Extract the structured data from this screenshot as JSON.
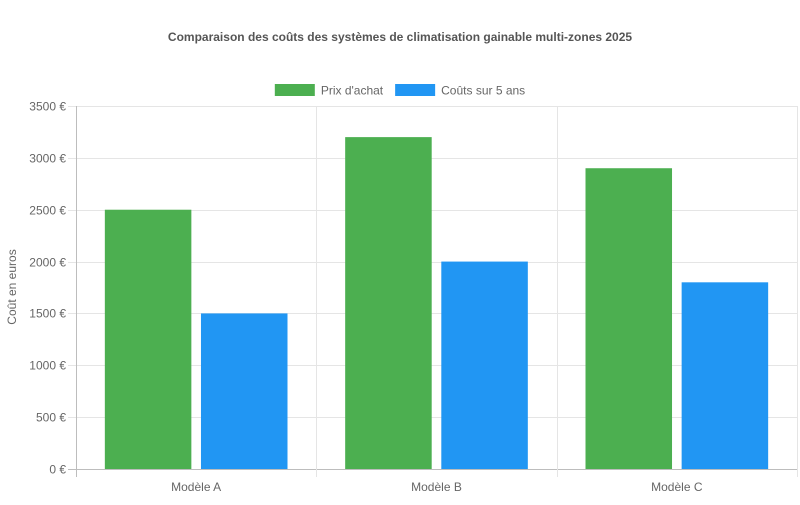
{
  "chart_data": {
    "type": "bar",
    "title": "Comparaison des coûts des systèmes de climatisation gainable multi-zones 2025",
    "xlabel": "",
    "ylabel": "Coût en euros",
    "categories": [
      "Modèle A",
      "Modèle B",
      "Modèle C"
    ],
    "series": [
      {
        "name": "Prix d'achat",
        "values": [
          2500,
          3200,
          2900
        ],
        "color": "#4caf50"
      },
      {
        "name": "Coûts sur 5 ans",
        "values": [
          1500,
          2000,
          1800
        ],
        "color": "#2196f3"
      }
    ],
    "ylim": [
      0,
      3500
    ],
    "yticks": [
      0,
      500,
      1000,
      1500,
      2000,
      2500,
      3000,
      3500
    ],
    "ytick_labels": [
      "0 €",
      "500 €",
      "1000 €",
      "1500 €",
      "2000 €",
      "2500 €",
      "3000 €",
      "3500 €"
    ],
    "grid": true,
    "legend_position": "top"
  }
}
